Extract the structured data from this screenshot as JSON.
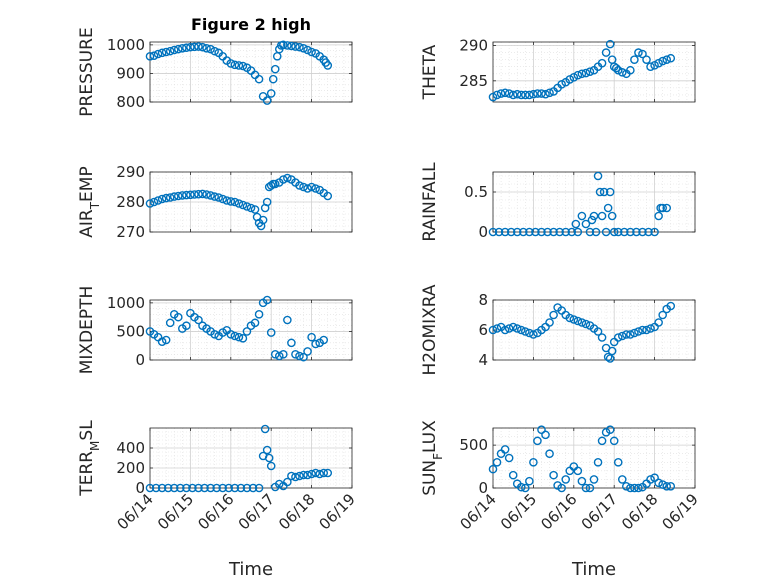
{
  "figure": {
    "title": "Figure 2 high",
    "xlabel": "Time"
  },
  "chart_data": [
    {
      "type": "scatter",
      "ylabel": "PRESSURE",
      "ylim": [
        800,
        1010
      ],
      "yticks": [
        800,
        900,
        1000
      ],
      "xlim": [
        0,
        5
      ],
      "grid": true,
      "x": [
        0.0,
        0.1,
        0.2,
        0.3,
        0.4,
        0.5,
        0.6,
        0.7,
        0.8,
        0.9,
        1.0,
        1.1,
        1.2,
        1.3,
        1.4,
        1.5,
        1.6,
        1.7,
        1.8,
        1.9,
        2.0,
        2.1,
        2.2,
        2.3,
        2.4,
        2.5,
        2.6,
        2.7,
        2.8,
        2.9,
        3.0,
        3.05,
        3.1,
        3.15,
        3.2,
        3.25,
        3.3,
        3.4,
        3.5,
        3.6,
        3.7,
        3.8,
        3.9,
        4.0,
        4.1,
        4.2,
        4.3,
        4.35,
        4.4
      ],
      "y": [
        960,
        962,
        968,
        972,
        975,
        978,
        982,
        985,
        988,
        990,
        992,
        993,
        994,
        992,
        988,
        985,
        978,
        972,
        960,
        945,
        935,
        930,
        928,
        926,
        920,
        910,
        895,
        880,
        820,
        805,
        830,
        880,
        915,
        960,
        985,
        998,
        1000,
        998,
        996,
        994,
        992,
        988,
        982,
        975,
        970,
        960,
        948,
        938,
        928
      ]
    },
    {
      "type": "scatter",
      "ylabel": "THETA",
      "ylim": [
        282,
        290.5
      ],
      "yticks": [
        285,
        290
      ],
      "xlim": [
        0,
        5
      ],
      "grid": true,
      "x": [
        0.0,
        0.1,
        0.2,
        0.3,
        0.4,
        0.5,
        0.6,
        0.7,
        0.8,
        0.9,
        1.0,
        1.1,
        1.2,
        1.3,
        1.4,
        1.5,
        1.6,
        1.7,
        1.8,
        1.9,
        2.0,
        2.1,
        2.2,
        2.3,
        2.4,
        2.5,
        2.6,
        2.7,
        2.8,
        2.9,
        2.95,
        3.0,
        3.05,
        3.1,
        3.2,
        3.3,
        3.4,
        3.5,
        3.6,
        3.7,
        3.8,
        3.9,
        4.0,
        4.1,
        4.2,
        4.3,
        4.4
      ],
      "y": [
        282.7,
        283.0,
        283.2,
        283.3,
        283.2,
        283.0,
        283.1,
        283.0,
        283.0,
        283.0,
        283.1,
        283.2,
        283.2,
        283.1,
        283.3,
        283.5,
        284.0,
        284.5,
        284.8,
        285.2,
        285.5,
        285.8,
        286.0,
        286.1,
        286.3,
        286.5,
        287.0,
        287.5,
        289.0,
        290.2,
        288.0,
        287.0,
        286.8,
        286.5,
        286.2,
        286.0,
        286.5,
        288.0,
        289.0,
        288.8,
        288.0,
        287.0,
        287.2,
        287.5,
        287.8,
        288.0,
        288.2
      ]
    },
    {
      "type": "scatter",
      "ylabel": "AIR_TEMP",
      "ylim": [
        270,
        290
      ],
      "yticks": [
        270,
        280,
        290
      ],
      "xlim": [
        0,
        5
      ],
      "grid": true,
      "x": [
        0.0,
        0.1,
        0.2,
        0.3,
        0.4,
        0.5,
        0.6,
        0.7,
        0.8,
        0.9,
        1.0,
        1.1,
        1.2,
        1.3,
        1.4,
        1.5,
        1.6,
        1.7,
        1.8,
        1.9,
        2.0,
        2.1,
        2.2,
        2.3,
        2.4,
        2.5,
        2.6,
        2.65,
        2.7,
        2.75,
        2.8,
        2.85,
        2.9,
        2.95,
        3.0,
        3.05,
        3.1,
        3.2,
        3.3,
        3.4,
        3.5,
        3.6,
        3.7,
        3.8,
        3.9,
        4.0,
        4.1,
        4.2,
        4.3,
        4.4
      ],
      "y": [
        279.5,
        280.0,
        280.5,
        281.0,
        281.3,
        281.5,
        281.8,
        282.0,
        282.2,
        282.3,
        282.4,
        282.5,
        282.6,
        282.7,
        282.5,
        282.2,
        281.8,
        281.5,
        281.0,
        280.5,
        280.2,
        280.0,
        279.5,
        279.0,
        278.5,
        278.0,
        277.5,
        275.0,
        273.0,
        272.0,
        274.0,
        278.0,
        280.0,
        285.0,
        285.5,
        286.0,
        286.0,
        286.5,
        287.5,
        288.0,
        287.5,
        286.5,
        285.5,
        285.0,
        284.5,
        285.0,
        284.5,
        284.0,
        283.0,
        282.0
      ]
    },
    {
      "type": "scatter",
      "ylabel": "RAINFALL",
      "ylim": [
        0,
        0.75
      ],
      "yticks": [
        0,
        0.5
      ],
      "xlim": [
        0,
        5
      ],
      "grid": true,
      "x": [
        0.0,
        0.15,
        0.3,
        0.45,
        0.6,
        0.75,
        0.9,
        1.05,
        1.2,
        1.35,
        1.5,
        1.65,
        1.8,
        1.95,
        2.05,
        2.1,
        2.2,
        2.3,
        2.4,
        2.45,
        2.5,
        2.55,
        2.6,
        2.65,
        2.7,
        2.75,
        2.8,
        2.85,
        2.9,
        2.95,
        3.0,
        3.1,
        3.25,
        3.4,
        3.55,
        3.7,
        3.85,
        4.0,
        4.1,
        4.15,
        4.2,
        4.3
      ],
      "y": [
        0,
        0,
        0,
        0,
        0,
        0,
        0,
        0,
        0,
        0,
        0,
        0,
        0,
        0,
        0.1,
        0,
        0.2,
        0.1,
        0,
        0.15,
        0.2,
        0,
        0.7,
        0.5,
        0.2,
        0.5,
        0,
        0.3,
        0.5,
        0.2,
        0,
        0,
        0,
        0,
        0,
        0,
        0,
        0,
        0.2,
        0.3,
        0.3,
        0.3
      ]
    },
    {
      "type": "scatter",
      "ylabel": "MIXDEPTH",
      "ylim": [
        0,
        1050
      ],
      "yticks": [
        0,
        500,
        1000
      ],
      "xlim": [
        0,
        5
      ],
      "grid": true,
      "x": [
        0.0,
        0.1,
        0.2,
        0.3,
        0.4,
        0.5,
        0.6,
        0.7,
        0.8,
        0.9,
        1.0,
        1.1,
        1.2,
        1.3,
        1.4,
        1.5,
        1.6,
        1.7,
        1.8,
        1.9,
        2.0,
        2.1,
        2.2,
        2.3,
        2.4,
        2.5,
        2.6,
        2.7,
        2.8,
        2.9,
        3.0,
        3.1,
        3.2,
        3.3,
        3.4,
        3.5,
        3.6,
        3.7,
        3.8,
        3.9,
        4.0,
        4.1,
        4.2,
        4.3
      ],
      "y": [
        500,
        450,
        400,
        320,
        350,
        650,
        800,
        750,
        550,
        600,
        820,
        750,
        700,
        600,
        550,
        500,
        450,
        420,
        480,
        520,
        450,
        420,
        400,
        380,
        500,
        600,
        650,
        800,
        1000,
        1050,
        480,
        100,
        70,
        100,
        700,
        300,
        100,
        70,
        50,
        150,
        400,
        280,
        300,
        350
      ]
    },
    {
      "type": "scatter",
      "ylabel": "H2OMIXRA",
      "ylim": [
        4,
        8
      ],
      "yticks": [
        4,
        6,
        8
      ],
      "xlim": [
        0,
        5
      ],
      "grid": true,
      "x": [
        0.0,
        0.1,
        0.2,
        0.3,
        0.4,
        0.5,
        0.6,
        0.7,
        0.8,
        0.9,
        1.0,
        1.1,
        1.2,
        1.3,
        1.4,
        1.5,
        1.6,
        1.7,
        1.8,
        1.9,
        2.0,
        2.1,
        2.2,
        2.3,
        2.4,
        2.5,
        2.6,
        2.7,
        2.8,
        2.85,
        2.9,
        2.95,
        3.0,
        3.1,
        3.2,
        3.3,
        3.4,
        3.5,
        3.6,
        3.7,
        3.8,
        3.9,
        4.0,
        4.1,
        4.2,
        4.3,
        4.4
      ],
      "y": [
        6.0,
        6.1,
        6.2,
        6.0,
        6.1,
        6.2,
        6.1,
        6.0,
        5.9,
        5.8,
        5.7,
        5.8,
        6.0,
        6.2,
        6.5,
        7.0,
        7.5,
        7.3,
        7.0,
        6.8,
        6.7,
        6.6,
        6.5,
        6.4,
        6.3,
        6.1,
        5.9,
        5.5,
        4.8,
        4.2,
        4.1,
        4.6,
        5.2,
        5.5,
        5.6,
        5.7,
        5.7,
        5.8,
        5.9,
        6.0,
        6.0,
        6.1,
        6.2,
        6.5,
        7.0,
        7.4,
        7.6
      ]
    },
    {
      "type": "scatter",
      "ylabel": "TERR_MSL",
      "ylim": [
        0,
        600
      ],
      "yticks": [
        0,
        200,
        400
      ],
      "xlim": [
        0,
        5
      ],
      "grid": true,
      "x": [
        0.0,
        0.15,
        0.3,
        0.45,
        0.6,
        0.75,
        0.9,
        1.05,
        1.2,
        1.35,
        1.5,
        1.65,
        1.8,
        1.95,
        2.1,
        2.25,
        2.4,
        2.55,
        2.7,
        2.8,
        2.85,
        2.9,
        2.95,
        3.0,
        3.1,
        3.2,
        3.3,
        3.4,
        3.5,
        3.6,
        3.7,
        3.8,
        3.9,
        4.0,
        4.1,
        4.2,
        4.3,
        4.4
      ],
      "y": [
        0,
        0,
        0,
        0,
        0,
        0,
        0,
        0,
        0,
        0,
        0,
        0,
        0,
        0,
        0,
        0,
        0,
        0,
        0,
        320,
        590,
        380,
        300,
        220,
        10,
        40,
        20,
        60,
        120,
        110,
        120,
        130,
        130,
        140,
        150,
        140,
        150,
        150
      ]
    },
    {
      "type": "scatter",
      "ylabel": "SUN_FLUX",
      "ylim": [
        0,
        700
      ],
      "yticks": [
        0,
        500
      ],
      "xlim": [
        0,
        5
      ],
      "grid": true,
      "x": [
        0.0,
        0.1,
        0.2,
        0.3,
        0.4,
        0.5,
        0.6,
        0.7,
        0.8,
        0.9,
        1.0,
        1.1,
        1.2,
        1.3,
        1.4,
        1.5,
        1.6,
        1.7,
        1.8,
        1.9,
        2.0,
        2.1,
        2.2,
        2.3,
        2.4,
        2.5,
        2.6,
        2.7,
        2.8,
        2.9,
        3.0,
        3.1,
        3.2,
        3.3,
        3.4,
        3.5,
        3.6,
        3.7,
        3.8,
        3.9,
        4.0,
        4.1,
        4.2,
        4.3,
        4.4
      ],
      "y": [
        220,
        300,
        400,
        450,
        350,
        150,
        50,
        10,
        0,
        80,
        300,
        550,
        680,
        620,
        400,
        150,
        30,
        0,
        100,
        200,
        250,
        200,
        80,
        0,
        0,
        100,
        300,
        550,
        650,
        680,
        550,
        300,
        100,
        20,
        0,
        0,
        0,
        10,
        50,
        100,
        120,
        60,
        40,
        20,
        20
      ]
    }
  ],
  "xticks": [
    "06/14",
    "06/15",
    "06/16",
    "06/17",
    "06/18",
    "06/19"
  ],
  "colors": {
    "marker": "#0072bd",
    "axis": "#262626",
    "grid": "#dfdfdf"
  }
}
